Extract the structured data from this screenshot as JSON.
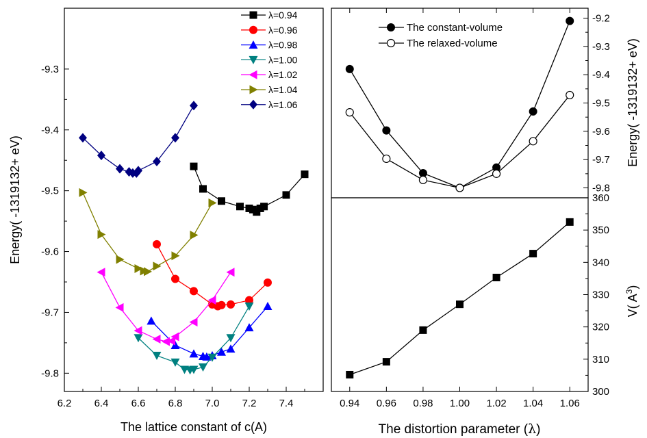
{
  "chart_data": [
    {
      "type": "line",
      "title": "",
      "xlabel": "The lattice constant of c(A)",
      "ylabel": "Energy(  -1319132+ eV)",
      "xlim": [
        6.2,
        7.6
      ],
      "ylim": [
        -9.83,
        -9.2
      ],
      "xticks": [
        "6.2",
        "6.4",
        "6.6",
        "6.8",
        "7.0",
        "7.2",
        "7.4"
      ],
      "yticks": [
        "-9.3",
        "-9.4",
        "-9.5",
        "-9.6",
        "-9.7",
        "-9.8"
      ],
      "legend_position": "top-right",
      "series": [
        {
          "name": "λ=0.94",
          "color": "#000000",
          "marker": "square",
          "x": [
            6.9,
            6.95,
            7.05,
            7.15,
            7.2,
            7.22,
            7.24,
            7.26,
            7.28,
            7.4,
            7.5
          ],
          "y": [
            -9.46,
            -9.497,
            -9.517,
            -9.526,
            -9.529,
            -9.531,
            -9.535,
            -9.529,
            -9.526,
            -9.507,
            -9.473
          ]
        },
        {
          "name": "λ=0.96",
          "color": "#ff0000",
          "marker": "circle",
          "x": [
            6.7,
            6.8,
            6.9,
            7.0,
            7.03,
            7.05,
            7.1,
            7.2,
            7.3
          ],
          "y": [
            -9.588,
            -9.645,
            -9.665,
            -9.687,
            -9.69,
            -9.688,
            -9.687,
            -9.68,
            -9.651
          ]
        },
        {
          "name": "λ=0.98",
          "color": "#0000ff",
          "marker": "triangle-up",
          "x": [
            6.67,
            6.8,
            6.9,
            6.95,
            6.97,
            7.0,
            7.05,
            7.1,
            7.2,
            7.3
          ],
          "y": [
            -9.714,
            -9.754,
            -9.768,
            -9.772,
            -9.773,
            -9.771,
            -9.765,
            -9.76,
            -9.725,
            -9.69
          ]
        },
        {
          "name": "λ=1.00",
          "color": "#008080",
          "marker": "triangle-down",
          "x": [
            6.6,
            6.7,
            6.8,
            6.85,
            6.88,
            6.9,
            6.95,
            7.0,
            7.1,
            7.2
          ],
          "y": [
            -9.742,
            -9.771,
            -9.782,
            -9.794,
            -9.795,
            -9.794,
            -9.79,
            -9.774,
            -9.742,
            -9.69
          ]
        },
        {
          "name": "λ=1.02",
          "color": "#ff00ff",
          "marker": "triangle-left",
          "x": [
            6.4,
            6.5,
            6.6,
            6.7,
            6.75,
            6.78,
            6.8,
            6.9,
            7.0,
            7.1
          ],
          "y": [
            -9.634,
            -9.692,
            -9.73,
            -9.744,
            -9.748,
            -9.747,
            -9.74,
            -9.716,
            -9.68,
            -9.634
          ]
        },
        {
          "name": "λ=1.04",
          "color": "#808000",
          "marker": "triangle-right",
          "x": [
            6.3,
            6.4,
            6.5,
            6.6,
            6.63,
            6.65,
            6.7,
            6.8,
            6.9,
            7.0
          ],
          "y": [
            -9.503,
            -9.572,
            -9.613,
            -9.628,
            -9.632,
            -9.633,
            -9.624,
            -9.607,
            -9.573,
            -9.52
          ]
        },
        {
          "name": "λ=1.06",
          "color": "#000080",
          "marker": "diamond",
          "x": [
            6.3,
            6.4,
            6.5,
            6.55,
            6.57,
            6.59,
            6.6,
            6.7,
            6.8,
            6.9
          ],
          "y": [
            -9.413,
            -9.442,
            -9.464,
            -9.469,
            -9.471,
            -9.471,
            -9.467,
            -9.452,
            -9.413,
            -9.36
          ]
        }
      ]
    },
    {
      "type": "line",
      "title": "",
      "xlabel": "",
      "ylabel": "Energy(  -1319132+ eV)",
      "xlim": [
        0.93,
        1.07
      ],
      "ylim": [
        -9.835,
        -9.165
      ],
      "yticks": [
        "-9.2",
        "-9.3",
        "-9.4",
        "-9.5",
        "-9.6",
        "-9.7",
        "-9.8"
      ],
      "legend_position": "top-left",
      "series": [
        {
          "name": "The constant-volume",
          "color": "#000000",
          "marker": "filled-circle",
          "x": [
            0.94,
            0.96,
            0.98,
            1.0,
            1.02,
            1.04,
            1.06
          ],
          "y": [
            -9.38,
            -9.597,
            -9.748,
            -9.8,
            -9.728,
            -9.53,
            -9.21
          ]
        },
        {
          "name": "The relaxed-volume",
          "color": "#000000",
          "marker": "open-circle",
          "x": [
            0.94,
            0.96,
            0.98,
            1.0,
            1.02,
            1.04,
            1.06
          ],
          "y": [
            -9.533,
            -9.697,
            -9.772,
            -9.8,
            -9.75,
            -9.635,
            -9.472
          ]
        }
      ]
    },
    {
      "type": "line",
      "title": "",
      "xlabel": "The distortion parameter (λ)",
      "ylabel": "V( A3)",
      "xlim": [
        0.93,
        1.07
      ],
      "ylim": [
        300,
        360
      ],
      "xticks": [
        "0.94",
        "0.96",
        "0.98",
        "1.00",
        "1.02",
        "1.04",
        "1.06"
      ],
      "yticks": [
        "300",
        "310",
        "320",
        "330",
        "340",
        "350",
        "360"
      ],
      "series": [
        {
          "name": "",
          "color": "#000000",
          "marker": "square",
          "x": [
            0.94,
            0.96,
            0.98,
            1.0,
            1.02,
            1.04,
            1.06
          ],
          "y": [
            305.2,
            309.2,
            319.0,
            327.0,
            335.3,
            342.7,
            352.5
          ]
        }
      ]
    }
  ],
  "right_axis": {
    "xlabel_prefix": "The distortion parameter (",
    "xlabel_symbol": "λ",
    "xlabel_suffix": ")",
    "energy_ylabel": "Energy(  -1319132+ eV)",
    "volume_ylabel_main": "V( A",
    "volume_ylabel_sup": "3",
    "volume_ylabel_end": ")"
  }
}
